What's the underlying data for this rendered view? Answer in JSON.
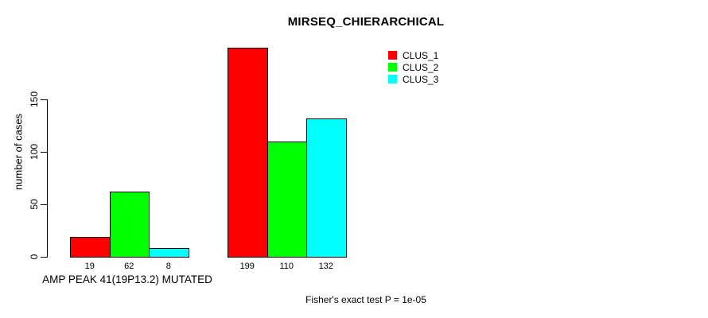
{
  "chart_data": {
    "type": "bar",
    "title": "MIRSEQ_CHIERARCHICAL",
    "ylabel": "number of cases",
    "xlabel": "AMP PEAK 41(19P13.2) MUTATED",
    "footnote": "Fisher's exact test P = 1e-05",
    "yticks": [
      0,
      50,
      100,
      150
    ],
    "ylim": [
      0,
      200
    ],
    "grid": false,
    "legend_position": "top-right",
    "background_color": "#ffffff",
    "bar_border_color": "#000000",
    "series": [
      {
        "name": "CLUS_1",
        "color": "#ff0000"
      },
      {
        "name": "CLUS_2",
        "color": "#00ff00"
      },
      {
        "name": "CLUS_3",
        "color": "#00ffff"
      }
    ],
    "groups": [
      {
        "label": "AMP PEAK 41(19P13.2) MUTATED",
        "values": [
          19,
          62,
          8
        ],
        "bar_labels": [
          "19",
          "62",
          "8"
        ]
      },
      {
        "label": "",
        "values": [
          199,
          110,
          132
        ],
        "bar_labels": [
          "199",
          "110",
          "132"
        ]
      }
    ]
  }
}
